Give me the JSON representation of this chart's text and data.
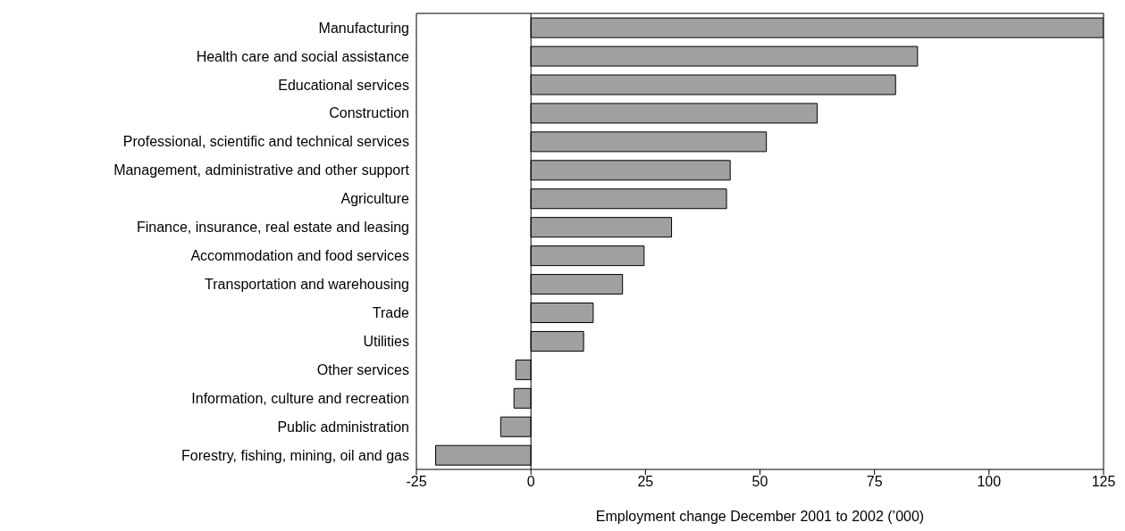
{
  "chart_data": {
    "type": "bar",
    "orientation": "horizontal",
    "xlabel": "Employment change December 2001 to 2002 (’000)",
    "categories": [
      "Manufacturing",
      "Health care and social assistance",
      "Educational services",
      "Construction",
      "Professional, scientific and technical services",
      "Management, administrative and other support",
      "Agriculture",
      "Finance, insurance, real estate and leasing",
      "Accommodation and food services",
      "Transportation and warehousing",
      "Trade",
      "Utilities",
      "Other services",
      "Information, culture and recreation",
      "Public administration",
      "Forestry, fishing, mining, oil and gas"
    ],
    "values": [
      125,
      84.4,
      79.6,
      62.5,
      51.4,
      43.5,
      42.7,
      30.7,
      24.7,
      20.0,
      13.6,
      11.5,
      -3.3,
      -3.7,
      -6.6,
      -20.8
    ],
    "color": "#a0a0a0",
    "xlim": [
      -25,
      125
    ],
    "xticks": [
      -25,
      0,
      25,
      50,
      75,
      100,
      125
    ],
    "ref_lines": [
      {
        "axis": "x",
        "value": 0,
        "color": "#000000"
      }
    ],
    "grid": false
  }
}
